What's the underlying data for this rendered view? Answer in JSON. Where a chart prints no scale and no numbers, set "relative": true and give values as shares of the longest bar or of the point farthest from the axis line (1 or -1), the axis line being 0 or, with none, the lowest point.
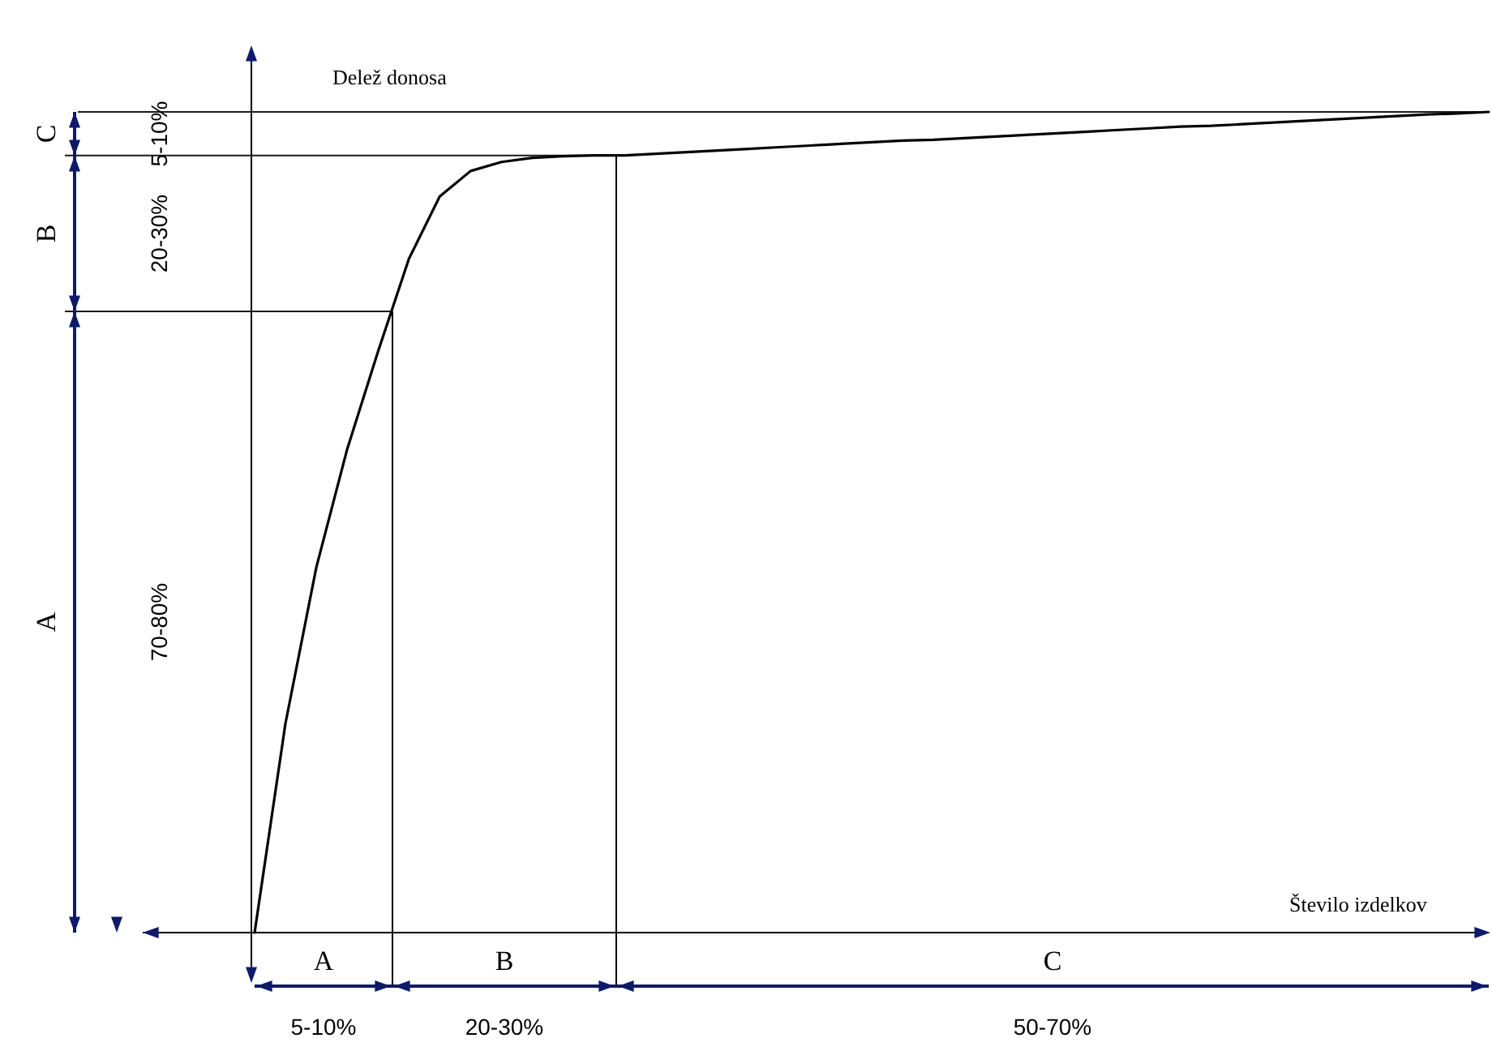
{
  "chart_data": {
    "type": "line",
    "relative": true,
    "xlabel": "Število izdelkov",
    "ylabel": "Delež donosa",
    "categories": [
      null,
      null,
      null,
      null,
      null,
      null,
      null,
      null,
      null,
      null,
      null,
      null,
      null,
      null,
      null,
      null,
      null,
      null,
      null,
      null,
      null,
      null,
      null,
      null,
      null,
      null,
      null,
      null,
      null,
      null,
      null,
      null,
      null,
      null,
      null,
      null,
      null,
      null,
      null,
      null,
      null
    ],
    "values": [
      0,
      0.255,
      0.445,
      0.589,
      0.708,
      0.821,
      0.897,
      0.928,
      0.939,
      0.944,
      0.946,
      0.947,
      0.947,
      0.949,
      0.951,
      0.953,
      0.955,
      0.957,
      0.959,
      0.961,
      0.963,
      0.965,
      0.966,
      0.968,
      0.97,
      0.972,
      0.974,
      0.976,
      0.978,
      0.98,
      0.982,
      0.983,
      0.985,
      0.987,
      0.989,
      0.991,
      0.993,
      0.995,
      0.997,
      0.998,
      1
    ],
    "color": "#000000",
    "marker": "none",
    "line_style": "solid",
    "ref_lines": [
      {
        "axis": "y",
        "value": 0.757,
        "label": null,
        "color": "#1a1a1a"
      },
      {
        "axis": "y",
        "value": 0.947,
        "label": null,
        "color": "#1a1a1a"
      },
      {
        "axis": "y",
        "value": 1,
        "label": null,
        "color": "#1a1a1a"
      }
    ],
    "annotations": [
      "A",
      "B",
      "C",
      "70-80%",
      "20-30%",
      "5-10%",
      "A",
      "B",
      "C",
      "5-10%",
      "20-30%",
      "50-70%"
    ]
  }
}
